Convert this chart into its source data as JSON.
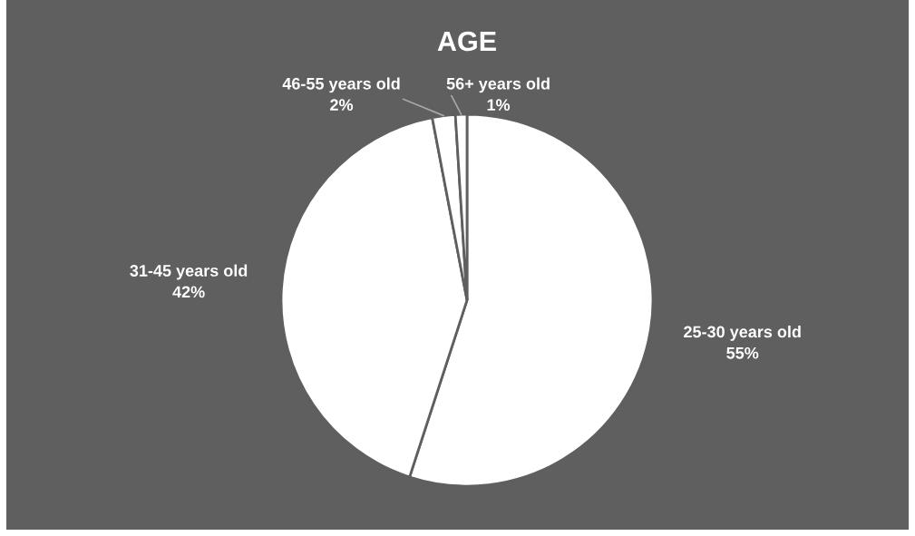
{
  "chart_data": {
    "type": "pie",
    "title": "AGE",
    "categories": [
      "25-30 years old",
      "31-45 years old",
      "46-55 years old",
      "56+ years old"
    ],
    "values": [
      55,
      42,
      2,
      1
    ],
    "value_labels": [
      "55%",
      "42%",
      "2%",
      "1%"
    ],
    "colors": [
      "#ffffff",
      "#ffffff",
      "#ffffff",
      "#ffffff"
    ],
    "legend": false
  }
}
